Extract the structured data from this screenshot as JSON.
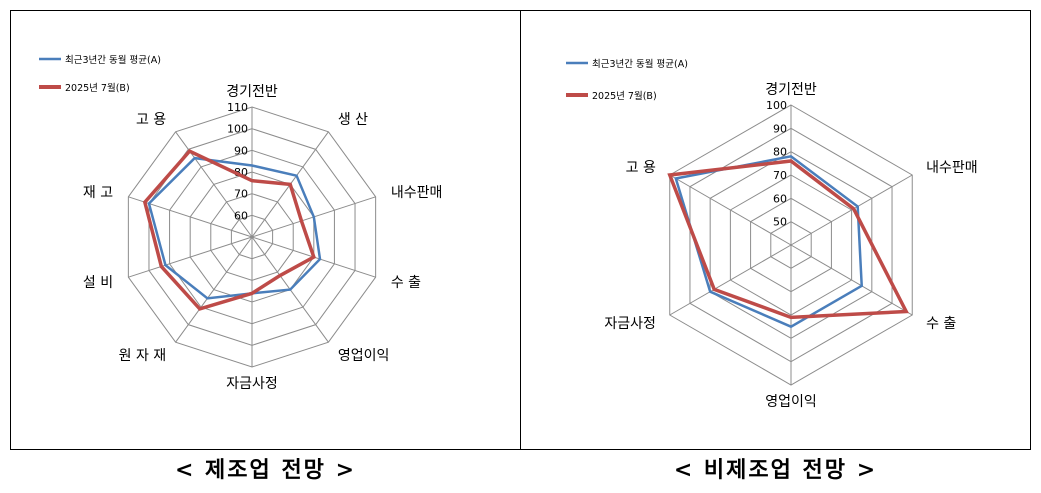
{
  "chart_data": [
    {
      "type": "radar",
      "caption": "< 제조업 전망 >",
      "axes": [
        "경기전반",
        "생 산",
        "내수판매",
        "수 출",
        "영업이익",
        "자금사정",
        "원 자 재",
        "설 비",
        "재 고",
        "고 용"
      ],
      "ticks": [
        "60",
        "70",
        "80",
        "90",
        "100",
        "110"
      ],
      "rlim": [
        50,
        110
      ],
      "series": [
        {
          "name": "최근3년간 동월 평균(A)",
          "color": "#4a7ebb",
          "values": [
            83,
            85,
            80,
            83,
            80,
            76,
            85,
            92,
            100,
            95
          ]
        },
        {
          "name": "2025년 7월(B)",
          "color": "#be4b48",
          "values": [
            76,
            80,
            74,
            80,
            72,
            76,
            91,
            94,
            102,
            99
          ]
        }
      ]
    },
    {
      "type": "radar",
      "caption": "< 비제조업 전망 >",
      "axes": [
        "경기전반",
        "내수판매",
        "수 출",
        "영업이익",
        "자금사정",
        "고 용"
      ],
      "ticks": [
        "50",
        "60",
        "70",
        "80",
        "90",
        "100"
      ],
      "rlim": [
        40,
        100
      ],
      "series": [
        {
          "name": "최근3년간 동월 평균(A)",
          "color": "#4a7ebb",
          "values": [
            78,
            73,
            75,
            75,
            80,
            97
          ]
        },
        {
          "name": "2025년 7월(B)",
          "color": "#be4b48",
          "values": [
            76,
            71,
            97,
            71,
            78,
            100
          ]
        }
      ]
    }
  ]
}
